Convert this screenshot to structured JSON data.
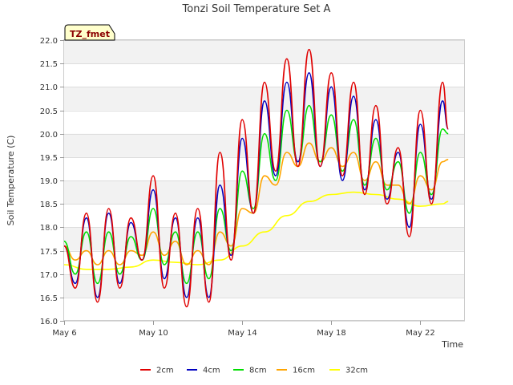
{
  "chart_data": {
    "type": "line",
    "title": "Tonzi Soil Temperature Set A",
    "xlabel": "Time",
    "ylabel": "Soil Temperature (C)",
    "badge": "TZ_fmet",
    "ylim": [
      16.0,
      22.0
    ],
    "yticks": [
      "16.0",
      "16.5",
      "17.0",
      "17.5",
      "18.0",
      "18.5",
      "19.0",
      "19.5",
      "20.0",
      "20.5",
      "21.0",
      "21.5",
      "22.0"
    ],
    "xlim": [
      "May 6",
      "May 24"
    ],
    "xticks": [
      "May 6",
      "May 10",
      "May 14",
      "May 18",
      "May 22"
    ],
    "grid": true,
    "legend_position": "bottom",
    "series": [
      {
        "name": "2cm",
        "color": "#e00000",
        "values": [
          [
            "May 6 00:00",
            17.6
          ],
          [
            "May 6 12:00",
            16.7
          ],
          [
            "May 7 00:00",
            18.3
          ],
          [
            "May 7 12:00",
            16.4
          ],
          [
            "May 8 00:00",
            18.4
          ],
          [
            "May 8 12:00",
            16.7
          ],
          [
            "May 9 00:00",
            18.2
          ],
          [
            "May 9 12:00",
            17.3
          ],
          [
            "May 10 00:00",
            19.1
          ],
          [
            "May 10 12:00",
            16.7
          ],
          [
            "May 11 00:00",
            18.3
          ],
          [
            "May 11 12:00",
            16.3
          ],
          [
            "May 12 00:00",
            18.4
          ],
          [
            "May 12 12:00",
            16.4
          ],
          [
            "May 13 00:00",
            19.6
          ],
          [
            "May 13 12:00",
            17.3
          ],
          [
            "May 14 00:00",
            20.3
          ],
          [
            "May 14 12:00",
            18.3
          ],
          [
            "May 15 00:00",
            21.1
          ],
          [
            "May 15 12:00",
            19.2
          ],
          [
            "May 16 00:00",
            21.6
          ],
          [
            "May 16 12:00",
            19.3
          ],
          [
            "May 17 00:00",
            21.8
          ],
          [
            "May 17 12:00",
            19.3
          ],
          [
            "May 18 00:00",
            21.3
          ],
          [
            "May 18 12:00",
            19.1
          ],
          [
            "May 19 00:00",
            21.1
          ],
          [
            "May 19 12:00",
            18.7
          ],
          [
            "May 20 00:00",
            20.6
          ],
          [
            "May 20 12:00",
            18.5
          ],
          [
            "May 21 00:00",
            19.7
          ],
          [
            "May 21 12:00",
            17.8
          ],
          [
            "May 22 00:00",
            20.5
          ],
          [
            "May 22 12:00",
            18.5
          ],
          [
            "May 23 00:00",
            21.1
          ],
          [
            "May 23 06:00",
            20.1
          ]
        ]
      },
      {
        "name": "4cm",
        "color": "#0000c0",
        "values": [
          [
            "May 6 00:00",
            17.6
          ],
          [
            "May 6 12:00",
            16.8
          ],
          [
            "May 7 00:00",
            18.2
          ],
          [
            "May 7 12:00",
            16.5
          ],
          [
            "May 8 00:00",
            18.3
          ],
          [
            "May 8 12:00",
            16.8
          ],
          [
            "May 9 00:00",
            18.1
          ],
          [
            "May 9 12:00",
            17.3
          ],
          [
            "May 10 00:00",
            18.8
          ],
          [
            "May 10 12:00",
            16.9
          ],
          [
            "May 11 00:00",
            18.2
          ],
          [
            "May 11 12:00",
            16.5
          ],
          [
            "May 12 00:00",
            18.2
          ],
          [
            "May 12 12:00",
            16.5
          ],
          [
            "May 13 00:00",
            18.9
          ],
          [
            "May 13 12:00",
            17.4
          ],
          [
            "May 14 00:00",
            19.9
          ],
          [
            "May 14 12:00",
            18.3
          ],
          [
            "May 15 00:00",
            20.7
          ],
          [
            "May 15 12:00",
            19.1
          ],
          [
            "May 16 00:00",
            21.1
          ],
          [
            "May 16 12:00",
            19.4
          ],
          [
            "May 17 00:00",
            21.3
          ],
          [
            "May 17 12:00",
            19.3
          ],
          [
            "May 18 00:00",
            21.0
          ],
          [
            "May 18 12:00",
            19.0
          ],
          [
            "May 19 00:00",
            20.8
          ],
          [
            "May 19 12:00",
            18.8
          ],
          [
            "May 20 00:00",
            20.3
          ],
          [
            "May 20 12:00",
            18.6
          ],
          [
            "May 21 00:00",
            19.6
          ],
          [
            "May 21 12:00",
            18.0
          ],
          [
            "May 22 00:00",
            20.2
          ],
          [
            "May 22 12:00",
            18.6
          ],
          [
            "May 23 00:00",
            20.7
          ],
          [
            "May 23 06:00",
            20.1
          ]
        ]
      },
      {
        "name": "8cm",
        "color": "#00dd00",
        "values": [
          [
            "May 6 00:00",
            17.7
          ],
          [
            "May 6 12:00",
            17.0
          ],
          [
            "May 7 00:00",
            17.9
          ],
          [
            "May 7 12:00",
            16.8
          ],
          [
            "May 8 00:00",
            17.9
          ],
          [
            "May 8 12:00",
            17.0
          ],
          [
            "May 9 00:00",
            17.8
          ],
          [
            "May 9 12:00",
            17.3
          ],
          [
            "May 10 00:00",
            18.4
          ],
          [
            "May 10 12:00",
            17.2
          ],
          [
            "May 11 00:00",
            17.9
          ],
          [
            "May 11 12:00",
            16.8
          ],
          [
            "May 12 00:00",
            17.9
          ],
          [
            "May 12 12:00",
            16.9
          ],
          [
            "May 13 00:00",
            18.4
          ],
          [
            "May 13 12:00",
            17.5
          ],
          [
            "May 14 00:00",
            19.2
          ],
          [
            "May 14 12:00",
            18.4
          ],
          [
            "May 15 00:00",
            20.0
          ],
          [
            "May 15 12:00",
            19.0
          ],
          [
            "May 16 00:00",
            20.5
          ],
          [
            "May 16 12:00",
            19.4
          ],
          [
            "May 17 00:00",
            20.6
          ],
          [
            "May 17 12:00",
            19.4
          ],
          [
            "May 18 00:00",
            20.4
          ],
          [
            "May 18 12:00",
            19.2
          ],
          [
            "May 19 00:00",
            20.3
          ],
          [
            "May 19 12:00",
            18.9
          ],
          [
            "May 20 00:00",
            19.9
          ],
          [
            "May 20 12:00",
            18.8
          ],
          [
            "May 21 00:00",
            19.4
          ],
          [
            "May 21 12:00",
            18.3
          ],
          [
            "May 22 00:00",
            19.6
          ],
          [
            "May 22 12:00",
            18.7
          ],
          [
            "May 23 00:00",
            20.1
          ],
          [
            "May 23 06:00",
            20.0
          ]
        ]
      },
      {
        "name": "16cm",
        "color": "#ffa500",
        "values": [
          [
            "May 6 00:00",
            17.6
          ],
          [
            "May 6 12:00",
            17.3
          ],
          [
            "May 7 00:00",
            17.5
          ],
          [
            "May 7 12:00",
            17.2
          ],
          [
            "May 8 00:00",
            17.5
          ],
          [
            "May 8 12:00",
            17.2
          ],
          [
            "May 9 00:00",
            17.5
          ],
          [
            "May 9 12:00",
            17.4
          ],
          [
            "May 10 00:00",
            17.9
          ],
          [
            "May 10 12:00",
            17.4
          ],
          [
            "May 11 00:00",
            17.7
          ],
          [
            "May 11 12:00",
            17.2
          ],
          [
            "May 12 00:00",
            17.5
          ],
          [
            "May 12 12:00",
            17.2
          ],
          [
            "May 13 00:00",
            17.9
          ],
          [
            "May 13 12:00",
            17.6
          ],
          [
            "May 14 00:00",
            18.4
          ],
          [
            "May 14 12:00",
            18.3
          ],
          [
            "May 15 00:00",
            19.1
          ],
          [
            "May 15 12:00",
            18.9
          ],
          [
            "May 16 00:00",
            19.6
          ],
          [
            "May 16 12:00",
            19.3
          ],
          [
            "May 17 00:00",
            19.8
          ],
          [
            "May 17 12:00",
            19.4
          ],
          [
            "May 18 00:00",
            19.7
          ],
          [
            "May 18 12:00",
            19.3
          ],
          [
            "May 19 00:00",
            19.6
          ],
          [
            "May 19 12:00",
            19.0
          ],
          [
            "May 20 00:00",
            19.4
          ],
          [
            "May 20 12:00",
            18.9
          ],
          [
            "May 21 00:00",
            18.9
          ],
          [
            "May 21 12:00",
            18.5
          ],
          [
            "May 22 00:00",
            19.1
          ],
          [
            "May 22 12:00",
            18.8
          ],
          [
            "May 23 00:00",
            19.4
          ],
          [
            "May 23 06:00",
            19.45
          ]
        ]
      },
      {
        "name": "32cm",
        "color": "#ffff00",
        "values": [
          [
            "May 6 00:00",
            17.2
          ],
          [
            "May 7 00:00",
            17.1
          ],
          [
            "May 8 00:00",
            17.1
          ],
          [
            "May 9 00:00",
            17.15
          ],
          [
            "May 10 00:00",
            17.3
          ],
          [
            "May 11 00:00",
            17.25
          ],
          [
            "May 12 00:00",
            17.2
          ],
          [
            "May 13 00:00",
            17.3
          ],
          [
            "May 14 00:00",
            17.6
          ],
          [
            "May 15 00:00",
            17.9
          ],
          [
            "May 16 00:00",
            18.25
          ],
          [
            "May 17 00:00",
            18.55
          ],
          [
            "May 18 00:00",
            18.7
          ],
          [
            "May 19 00:00",
            18.75
          ],
          [
            "May 20 00:00",
            18.7
          ],
          [
            "May 21 00:00",
            18.6
          ],
          [
            "May 22 00:00",
            18.45
          ],
          [
            "May 23 00:00",
            18.5
          ],
          [
            "May 23 06:00",
            18.55
          ]
        ]
      }
    ]
  }
}
